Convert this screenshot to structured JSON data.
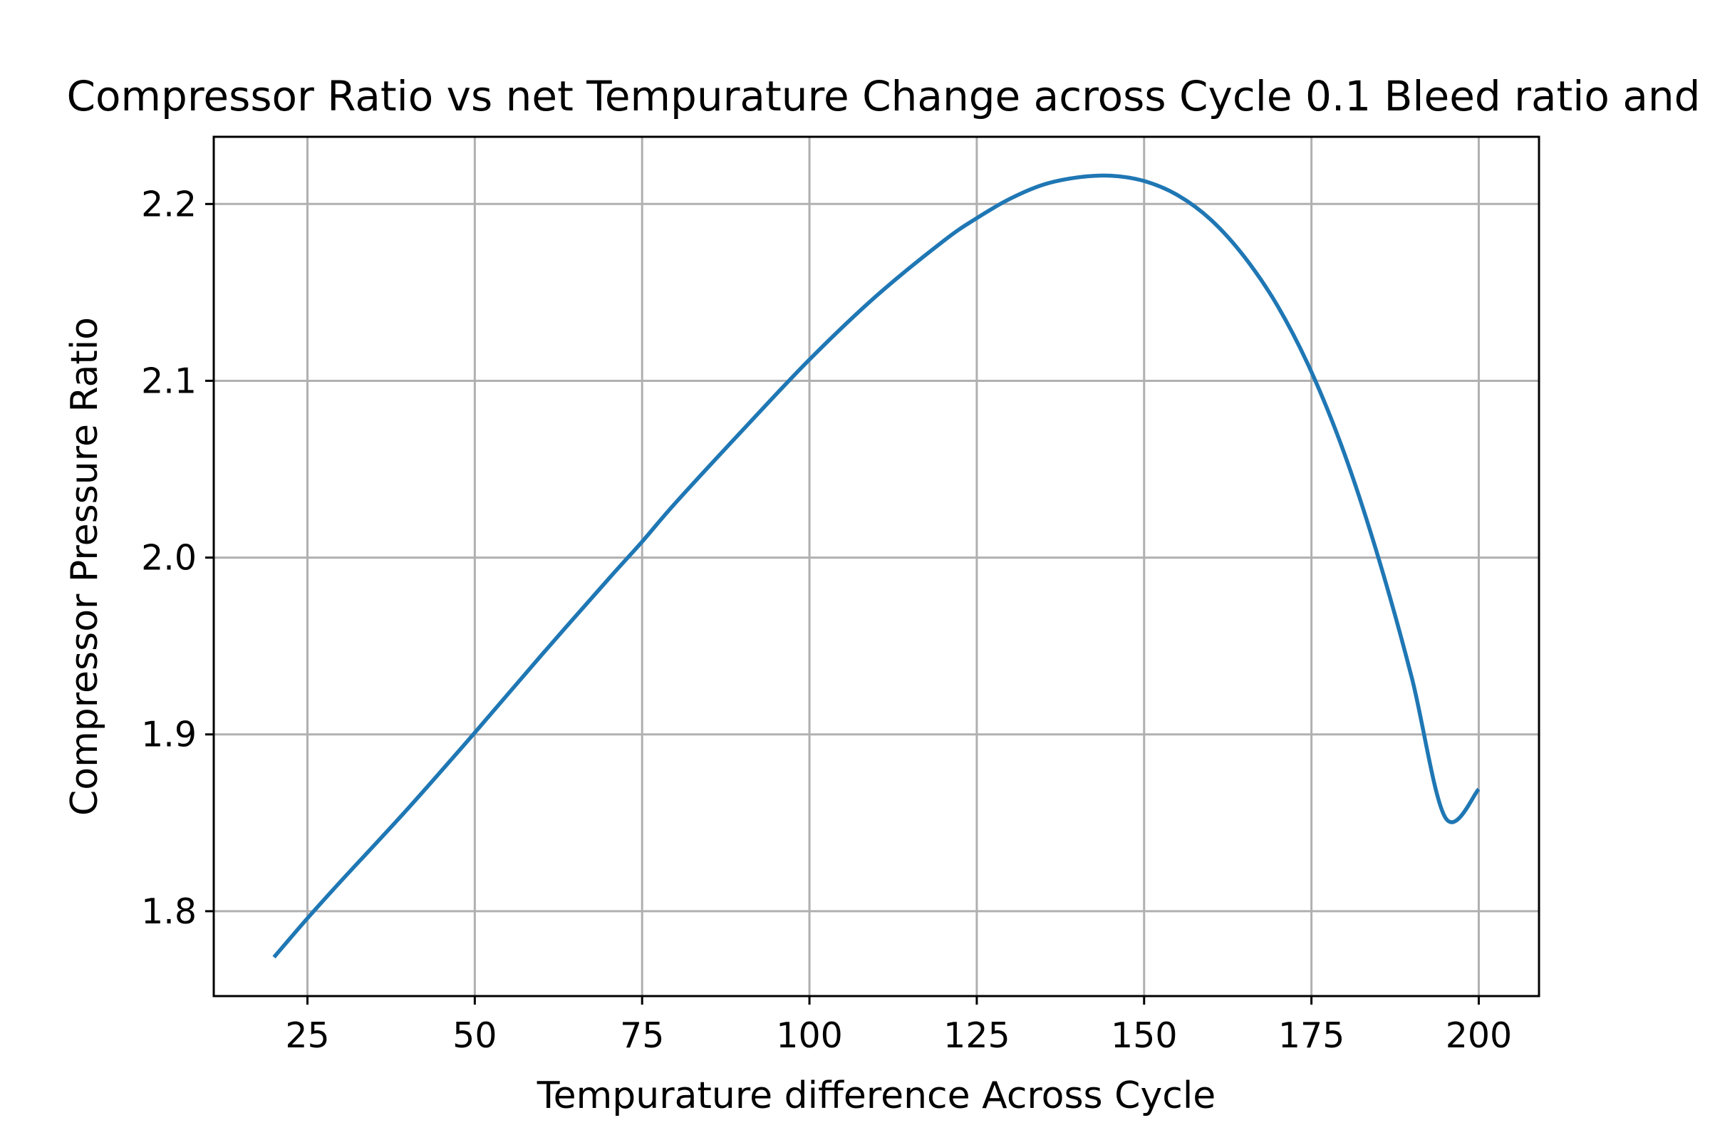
{
  "chart_data": {
    "type": "line",
    "title": "Compressor Ratio vs net Tempurature Change across Cycle 0.1 Bleed ratio and",
    "xlabel": "Tempurature difference Across Cycle",
    "ylabel": "Compressor Pressure Ratio",
    "xlim": [
      11,
      209
    ],
    "ylim": [
      1.752,
      2.238
    ],
    "xticks": [
      25,
      50,
      75,
      100,
      125,
      150,
      175,
      200
    ],
    "yticks": [
      1.8,
      1.9,
      2.0,
      2.1,
      2.2
    ],
    "xtick_labels": [
      "25",
      "50",
      "75",
      "100",
      "125",
      "150",
      "175",
      "200"
    ],
    "ytick_labels": [
      "1.8",
      "1.9",
      "2.0",
      "2.1",
      "2.2"
    ],
    "grid": true,
    "series": [
      {
        "color": "#1f77b4",
        "x": [
          20,
          25,
          30,
          40,
          50,
          60,
          70,
          75,
          80,
          90,
          100,
          110,
          120,
          125,
          130,
          135,
          140,
          145,
          150,
          155,
          160,
          165,
          170,
          175,
          180,
          185,
          190,
          195,
          200
        ],
        "y": [
          1.774,
          1.796,
          1.817,
          1.858,
          1.901,
          1.945,
          1.988,
          2.009,
          2.031,
          2.072,
          2.112,
          2.148,
          2.179,
          2.192,
          2.203,
          2.211,
          2.215,
          2.216,
          2.213,
          2.205,
          2.191,
          2.17,
          2.142,
          2.105,
          2.058,
          2.0,
          1.932,
          1.853,
          1.869
        ]
      }
    ]
  }
}
